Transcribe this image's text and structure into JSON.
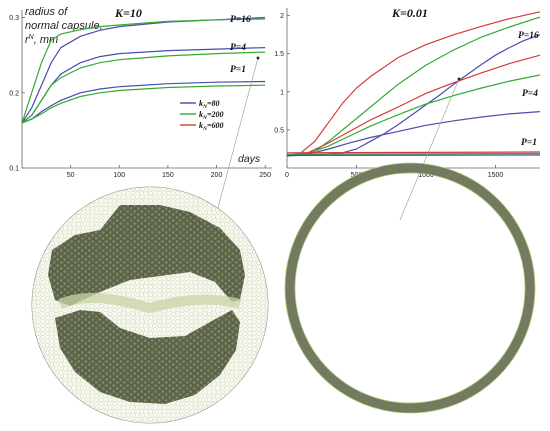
{
  "colors": {
    "k80": "#4b4bb0",
    "k200": "#33aa33",
    "k600": "#d43a3a",
    "capsule_fill": "#6f7a5a",
    "cell_light": "#c9d3a8"
  },
  "chart_data": [
    {
      "type": "line",
      "title": "K=10",
      "xlabel": "days",
      "ylabel_lines": [
        "radius of",
        "normal capsule,",
        "r",
        "N",
        ", mm"
      ],
      "xlim": [
        0,
        255
      ],
      "ylim": [
        0.1,
        0.31
      ],
      "xticks": [
        50,
        100,
        150,
        200,
        250
      ],
      "yticks": [
        0.1,
        0.2,
        0.3
      ],
      "annotations": [
        "P=16",
        "P=4",
        "P=1"
      ],
      "legend": {
        "position": "right-center",
        "entries": [
          {
            "base": "k",
            "sub": "N",
            "text": "=80",
            "color_key": "k80"
          },
          {
            "base": "k",
            "sub": "N",
            "text": "=200",
            "color_key": "k200"
          },
          {
            "base": "k",
            "sub": "N",
            "text": "=600",
            "color_key": "k600"
          }
        ]
      },
      "series": [
        {
          "color_key": "k80",
          "x": [
            0,
            10,
            20,
            30,
            40,
            60,
            80,
            100,
            150,
            200,
            250
          ],
          "y": [
            0.16,
            0.18,
            0.21,
            0.24,
            0.26,
            0.275,
            0.283,
            0.288,
            0.294,
            0.297,
            0.3
          ]
        },
        {
          "color_key": "k200",
          "x": [
            0,
            10,
            20,
            30,
            40,
            60,
            80,
            100,
            150,
            200,
            250
          ],
          "y": [
            0.16,
            0.2,
            0.24,
            0.27,
            0.278,
            0.284,
            0.288,
            0.29,
            0.295,
            0.297,
            0.298
          ]
        },
        {
          "color_key": "k80",
          "x": [
            0,
            10,
            20,
            30,
            40,
            60,
            80,
            100,
            150,
            200,
            250
          ],
          "y": [
            0.16,
            0.17,
            0.19,
            0.21,
            0.225,
            0.24,
            0.248,
            0.252,
            0.256,
            0.258,
            0.26
          ]
        },
        {
          "color_key": "k200",
          "x": [
            0,
            10,
            20,
            30,
            40,
            60,
            80,
            100,
            150,
            200,
            250
          ],
          "y": [
            0.16,
            0.17,
            0.19,
            0.21,
            0.22,
            0.233,
            0.24,
            0.244,
            0.249,
            0.252,
            0.254
          ]
        },
        {
          "color_key": "k80",
          "x": [
            0,
            10,
            20,
            30,
            40,
            60,
            80,
            100,
            150,
            200,
            250
          ],
          "y": [
            0.16,
            0.165,
            0.175,
            0.183,
            0.19,
            0.2,
            0.205,
            0.208,
            0.212,
            0.214,
            0.215
          ]
        },
        {
          "color_key": "k200",
          "x": [
            0,
            10,
            20,
            30,
            40,
            60,
            80,
            100,
            150,
            200,
            250
          ],
          "y": [
            0.16,
            0.165,
            0.172,
            0.18,
            0.186,
            0.195,
            0.2,
            0.203,
            0.207,
            0.209,
            0.21
          ]
        }
      ]
    },
    {
      "type": "line",
      "title": "K=0.01",
      "xlim": [
        0,
        1820
      ],
      "ylim": [
        0,
        2.1
      ],
      "xticks": [
        0,
        500,
        1000,
        1500
      ],
      "yticks": [
        0.5,
        1.0,
        1.5,
        2.0
      ],
      "annotations": [
        "P=16",
        "P=4",
        "P=1"
      ],
      "series": [
        {
          "color_key": "k600",
          "x": [
            0,
            100,
            200,
            300,
            400,
            500,
            600,
            800,
            1000,
            1200,
            1400,
            1600,
            1820
          ],
          "y": [
            0.16,
            0.2,
            0.35,
            0.6,
            0.85,
            1.05,
            1.2,
            1.45,
            1.62,
            1.75,
            1.86,
            1.96,
            2.05
          ]
        },
        {
          "color_key": "k200",
          "x": [
            0,
            100,
            200,
            300,
            400,
            500,
            600,
            800,
            1000,
            1200,
            1400,
            1600,
            1820
          ],
          "y": [
            0.16,
            0.17,
            0.22,
            0.35,
            0.5,
            0.65,
            0.8,
            1.1,
            1.35,
            1.55,
            1.72,
            1.85,
            1.98
          ]
        },
        {
          "color_key": "k80",
          "x": [
            0,
            200,
            400,
            500,
            600,
            700,
            800,
            900,
            1000,
            1100,
            1200,
            1300,
            1400,
            1500,
            1600,
            1700,
            1820
          ],
          "y": [
            0.16,
            0.17,
            0.2,
            0.25,
            0.35,
            0.45,
            0.57,
            0.7,
            0.83,
            0.96,
            1.1,
            1.23,
            1.36,
            1.48,
            1.58,
            1.67,
            1.75
          ]
        },
        {
          "color_key": "k600",
          "x": [
            0,
            150,
            300,
            450,
            600,
            800,
            1000,
            1200,
            1400,
            1600,
            1820
          ],
          "y": [
            0.16,
            0.2,
            0.33,
            0.48,
            0.63,
            0.8,
            0.98,
            1.12,
            1.25,
            1.37,
            1.48
          ]
        },
        {
          "color_key": "k200",
          "x": [
            0,
            150,
            300,
            450,
            600,
            800,
            1000,
            1200,
            1400,
            1600,
            1820
          ],
          "y": [
            0.16,
            0.19,
            0.29,
            0.42,
            0.55,
            0.7,
            0.84,
            0.95,
            1.05,
            1.14,
            1.22
          ]
        },
        {
          "color_key": "k80",
          "x": [
            0,
            150,
            300,
            450,
            600,
            800,
            1000,
            1200,
            1400,
            1600,
            1820
          ],
          "y": [
            0.16,
            0.18,
            0.25,
            0.33,
            0.4,
            0.48,
            0.56,
            0.62,
            0.67,
            0.71,
            0.74
          ]
        },
        {
          "color_key": "k600",
          "x": [
            0,
            1820
          ],
          "y": [
            0.2,
            0.21
          ]
        },
        {
          "color_key": "k200",
          "x": [
            0,
            1820
          ],
          "y": [
            0.18,
            0.19
          ]
        },
        {
          "color_key": "k80",
          "x": [
            0,
            1820
          ],
          "y": [
            0.165,
            0.17
          ]
        }
      ]
    }
  ]
}
